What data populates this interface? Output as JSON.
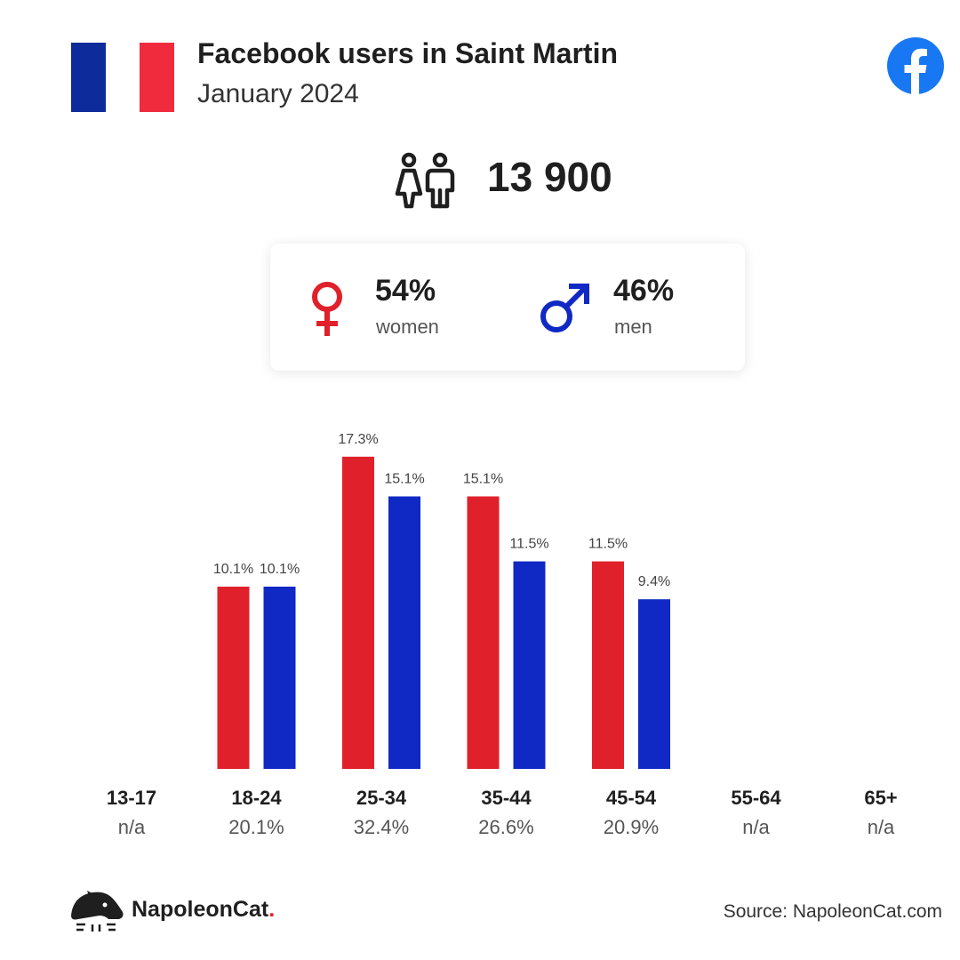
{
  "header": {
    "title": "Facebook users in Saint Martin",
    "subtitle": "January 2024"
  },
  "total_users": "13 900",
  "gender": {
    "women_pct": "54%",
    "women_label": "women",
    "men_pct": "46%",
    "men_label": "men"
  },
  "colors": {
    "women": "#e0202a",
    "men": "#1028c4",
    "flag": [
      "#0d2b9a",
      "#ffffff",
      "#ef2b3d"
    ],
    "facebook": "#1877f2"
  },
  "chart_data": {
    "type": "bar",
    "categories": [
      "13-17",
      "18-24",
      "25-34",
      "35-44",
      "45-54",
      "55-64",
      "65+"
    ],
    "category_totals": [
      "n/a",
      "20.1%",
      "32.4%",
      "26.6%",
      "20.9%",
      "n/a",
      "n/a"
    ],
    "series": [
      {
        "name": "women",
        "values": [
          null,
          10.1,
          17.3,
          15.1,
          11.5,
          null,
          null
        ],
        "labels": [
          "",
          "10.1%",
          "17.3%",
          "15.1%",
          "11.5%",
          "",
          ""
        ]
      },
      {
        "name": "men",
        "values": [
          null,
          10.1,
          15.1,
          11.5,
          9.4,
          null,
          null
        ],
        "labels": [
          "",
          "10.1%",
          "15.1%",
          "11.5%",
          "9.4%",
          "",
          ""
        ]
      }
    ],
    "ylim": [
      0,
      17.3
    ],
    "grid": false
  },
  "footer": {
    "brand": "NapoleonCat",
    "brand_dot": ".",
    "source": "Source: NapoleonCat.com"
  }
}
